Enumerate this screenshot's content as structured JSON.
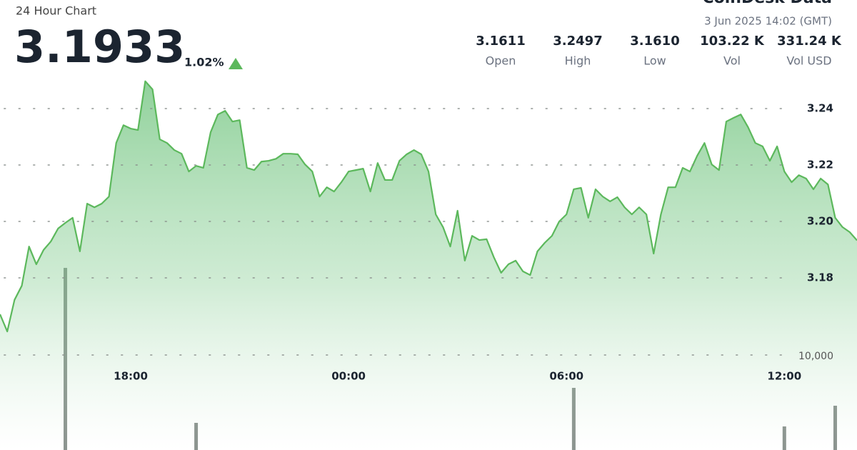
{
  "header": {
    "brand": "CoinDesk Data",
    "subtitle": "24 Hour Chart",
    "price": "3.1933",
    "change": "1.02%",
    "timestamp": "3 Jun 2025 14:02 (GMT)",
    "stats": [
      {
        "value": "3.1611",
        "label": "Open"
      },
      {
        "value": "3.2497",
        "label": "High"
      },
      {
        "value": "3.1610",
        "label": "Low"
      },
      {
        "value": "103.22 K",
        "label": "Vol"
      },
      {
        "value": "331.24 K",
        "label": "Vol USD"
      }
    ]
  },
  "chart_data": {
    "type": "line",
    "categories": [
      null,
      null,
      null,
      null,
      null,
      null,
      null,
      null,
      null,
      null,
      null,
      null,
      null,
      null,
      null,
      null,
      null,
      null,
      "18:00",
      null,
      null,
      null,
      null,
      null,
      null,
      null,
      null,
      null,
      null,
      null,
      null,
      null,
      null,
      null,
      null,
      null,
      null,
      null,
      null,
      null,
      null,
      null,
      null,
      null,
      null,
      null,
      null,
      null,
      "00:00",
      null,
      null,
      null,
      null,
      null,
      null,
      null,
      null,
      null,
      null,
      null,
      null,
      null,
      null,
      null,
      null,
      null,
      null,
      null,
      null,
      null,
      null,
      null,
      null,
      null,
      null,
      null,
      null,
      null,
      "06:00",
      null,
      null,
      null,
      null,
      null,
      null,
      null,
      null,
      null,
      null,
      null,
      null,
      null,
      null,
      null,
      null,
      null,
      null,
      null,
      null,
      null,
      null,
      null,
      null,
      null,
      null,
      null,
      null,
      null,
      "12:00",
      null,
      null,
      null,
      null,
      null,
      null,
      null,
      null,
      null,
      null
    ],
    "series": [
      {
        "color": "#5cb85c",
        "values": [
          3.1671,
          3.161,
          3.1722,
          3.1772,
          3.1911,
          3.1848,
          3.1899,
          3.1929,
          3.1975,
          3.1995,
          3.2013,
          3.1894,
          3.2063,
          3.205,
          3.2063,
          3.2088,
          3.2278,
          3.2341,
          3.2329,
          3.2324,
          3.2497,
          3.2468,
          3.2291,
          3.2278,
          3.2253,
          3.224,
          3.2177,
          3.2197,
          3.219,
          3.2316,
          3.2379,
          3.2392,
          3.2354,
          3.2359,
          3.219,
          3.2182,
          3.2212,
          3.2215,
          3.2222,
          3.224,
          3.224,
          3.2238,
          3.2202,
          3.2177,
          3.2088,
          3.2121,
          3.2106,
          3.2139,
          3.2177,
          3.2182,
          3.2187,
          3.2106,
          3.2207,
          3.2147,
          3.2147,
          3.2215,
          3.2238,
          3.2253,
          3.2238,
          3.2177,
          3.2025,
          3.198,
          3.1911,
          3.2038,
          3.1861,
          3.1949,
          3.1934,
          3.1937,
          3.1873,
          3.1818,
          3.1848,
          3.1861,
          3.1823,
          3.181,
          3.1894,
          3.1924,
          3.1949,
          3.2,
          3.2025,
          3.2114,
          3.2119,
          3.2013,
          3.2114,
          3.2088,
          3.2071,
          3.2086,
          3.205,
          3.2025,
          3.205,
          3.2025,
          3.1886,
          3.2025,
          3.2121,
          3.2121,
          3.219,
          3.2177,
          3.2233,
          3.2278,
          3.2202,
          3.2182,
          3.2354,
          3.2367,
          3.2379,
          3.2334,
          3.2278,
          3.2266,
          3.2215,
          3.2266,
          3.2177,
          3.2139,
          3.2164,
          3.2152,
          3.2114,
          3.2152,
          3.2131,
          3.2013,
          3.198,
          3.1962,
          3.1933
        ]
      },
      {
        "type": "bar",
        "axis": "y2",
        "color": "#5b6660",
        "values": [
          0,
          0,
          0,
          0,
          0,
          0,
          0,
          0,
          0,
          19170,
          0,
          0,
          0,
          0,
          0,
          0,
          0,
          0,
          0,
          0,
          0,
          0,
          0,
          0,
          0,
          0,
          0,
          2857,
          0,
          0,
          0,
          0,
          0,
          0,
          0,
          0,
          0,
          0,
          0,
          0,
          0,
          0,
          0,
          0,
          0,
          0,
          0,
          0,
          0,
          0,
          0,
          0,
          0,
          0,
          0,
          0,
          0,
          0,
          0,
          0,
          0,
          0,
          0,
          0,
          0,
          0,
          0,
          0,
          0,
          0,
          0,
          0,
          0,
          0,
          0,
          0,
          0,
          0,
          0,
          6541,
          0,
          0,
          0,
          0,
          0,
          0,
          0,
          0,
          0,
          0,
          0,
          0,
          0,
          0,
          0,
          0,
          0,
          0,
          0,
          0,
          0,
          0,
          0,
          0,
          0,
          0,
          0,
          0,
          2481,
          0,
          0,
          0,
          0,
          0,
          0,
          4662,
          0,
          0,
          0
        ]
      }
    ],
    "ylim": [
      3.12,
      3.27
    ],
    "yticks": [
      3.18,
      {
        "value": 3.2,
        "label": "3.20"
      },
      3.22,
      3.24
    ],
    "y2lim": [
      0,
      20000
    ],
    "y2ticks": [
      {
        "value": 10000,
        "label": "10,000"
      }
    ],
    "grid": true
  }
}
